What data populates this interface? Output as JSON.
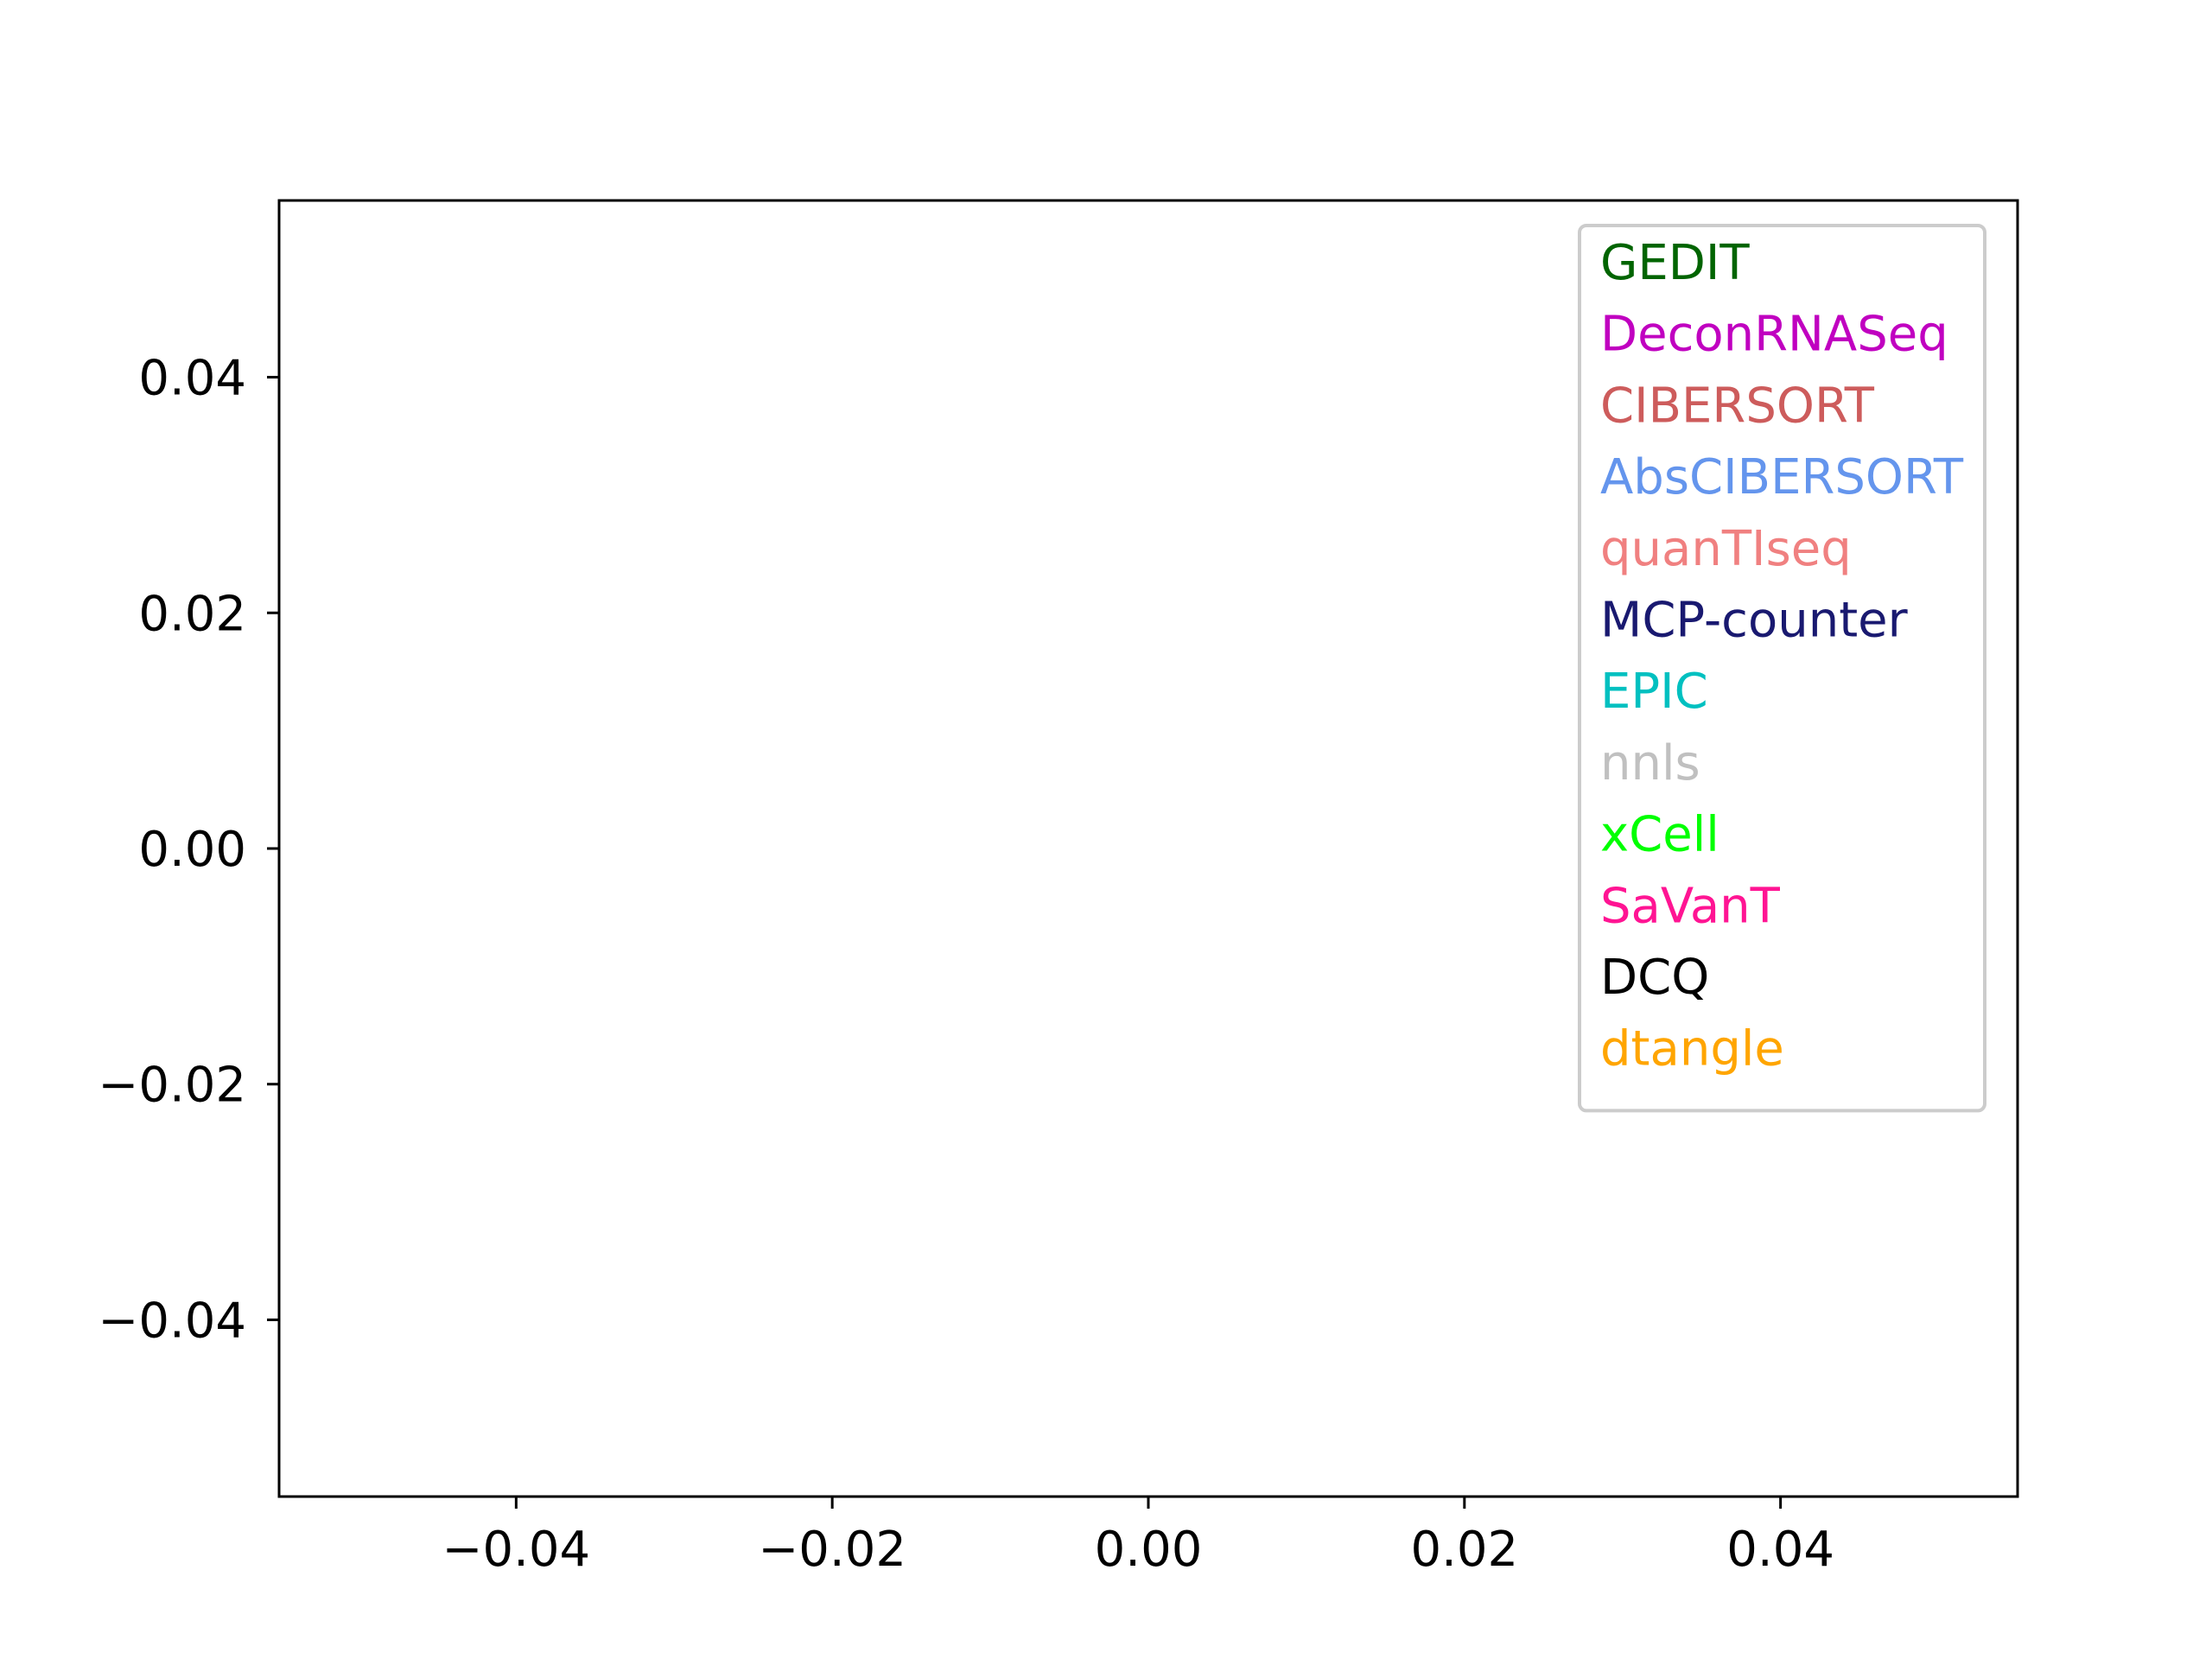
{
  "chart_data": {
    "type": "line",
    "title": "",
    "xlabel": "",
    "ylabel": "",
    "xlim": [
      -0.055,
      0.055
    ],
    "ylim": [
      -0.055,
      0.055
    ],
    "x_ticks": [
      -0.04,
      -0.02,
      0.0,
      0.02,
      0.04
    ],
    "y_ticks": [
      -0.04,
      -0.02,
      0.0,
      0.02,
      0.04
    ],
    "x_tick_labels": [
      "−0.04",
      "−0.02",
      "0.00",
      "0.02",
      "0.04"
    ],
    "y_tick_labels": [
      "−0.04",
      "−0.02",
      "0.00",
      "0.02",
      "0.04"
    ],
    "grid": false,
    "legend_position": "top-right",
    "series": [
      {
        "name": "GEDIT",
        "color": "#006400",
        "x": [],
        "y": []
      },
      {
        "name": "DeconRNASeq",
        "color": "#c000c0",
        "x": [],
        "y": []
      },
      {
        "name": "CIBERSORT",
        "color": "#cd5c5c",
        "x": [],
        "y": []
      },
      {
        "name": "AbsCIBERSORT",
        "color": "#6495ed",
        "x": [],
        "y": []
      },
      {
        "name": "quanTIseq",
        "color": "#f08080",
        "x": [],
        "y": []
      },
      {
        "name": "MCP-counter",
        "color": "#191970",
        "x": [],
        "y": []
      },
      {
        "name": "EPIC",
        "color": "#00c0c0",
        "x": [],
        "y": []
      },
      {
        "name": "nnls",
        "color": "#c0c0c0",
        "x": [],
        "y": []
      },
      {
        "name": "xCell",
        "color": "#00ff00",
        "x": [],
        "y": []
      },
      {
        "name": "SaVanT",
        "color": "#ff1493",
        "x": [],
        "y": []
      },
      {
        "name": "DCQ",
        "color": "#000000",
        "x": [],
        "y": []
      },
      {
        "name": "dtangle",
        "color": "#ffa500",
        "x": [],
        "y": []
      }
    ]
  }
}
